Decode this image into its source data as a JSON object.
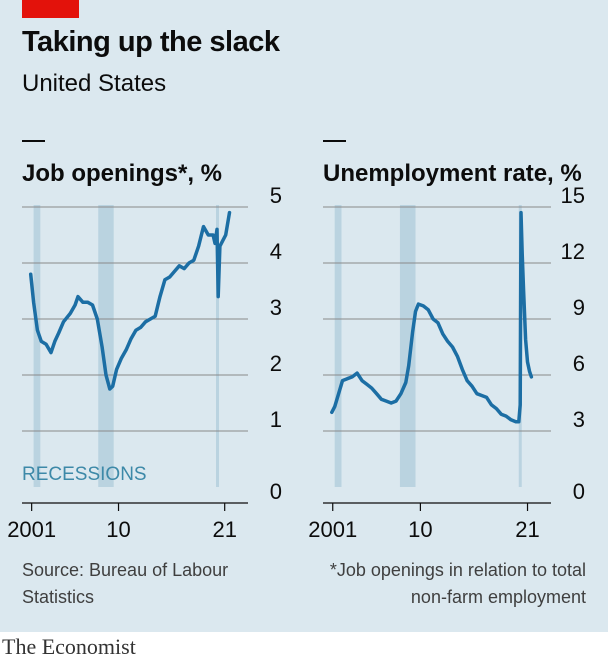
{
  "header": {
    "title": "Taking up the slack",
    "subtitle": "United States",
    "accent_color": "#e3120b"
  },
  "source": "Source: Bureau of Labour Statistics",
  "footnote": "*Job openings in relation to total non-farm employment",
  "brand": "The Economist",
  "recessions_label": "RECESSIONS",
  "colors": {
    "line": "#1c6ea4",
    "recession": "#bad3e0",
    "background": "#dbe8ef",
    "grid": "#8a8a8a"
  },
  "chart_data": [
    {
      "type": "line",
      "title": "Job openings*, %",
      "x_tick_labels": [
        "2001",
        "10",
        "21"
      ],
      "x_ticks": [
        2001,
        2010,
        2021
      ],
      "xlim": [
        2000,
        2023
      ],
      "ylim": [
        0,
        5
      ],
      "y_ticks": [
        0,
        1,
        2,
        3,
        4,
        5
      ],
      "grid": true,
      "recessions": [
        [
          2001.2,
          2001.9
        ],
        [
          2007.9,
          2009.5
        ],
        [
          2020.1,
          2020.4
        ]
      ],
      "series": [
        {
          "x": [
            2000.9,
            2001.2,
            2001.6,
            2002,
            2002.5,
            2003.0,
            2003.4,
            2003.8,
            2004.3,
            2005,
            2005.5,
            2005.8,
            2006.3,
            2006.8,
            2007.3,
            2007.8,
            2008.3,
            2008.7,
            2009.1,
            2009.4,
            2009.8,
            2010.3,
            2010.8,
            2011.3,
            2011.8,
            2012.3,
            2012.8,
            2013.3,
            2013.8,
            2014.3,
            2014.8,
            2015.3,
            2015.8,
            2016.3,
            2016.8,
            2017.3,
            2017.8,
            2018.3,
            2018.8,
            2019.3,
            2019.8,
            2020.0,
            2020.2,
            2020.33,
            2020.5,
            2020.8,
            2021.1,
            2021.5
          ],
          "y": [
            3.8,
            3.3,
            2.8,
            2.6,
            2.55,
            2.4,
            2.6,
            2.75,
            2.95,
            3.1,
            3.25,
            3.4,
            3.3,
            3.3,
            3.25,
            3.0,
            2.5,
            2.0,
            1.75,
            1.8,
            2.1,
            2.3,
            2.45,
            2.65,
            2.8,
            2.85,
            2.95,
            3.0,
            3.05,
            3.4,
            3.7,
            3.75,
            3.85,
            3.95,
            3.9,
            4.0,
            4.05,
            4.3,
            4.65,
            4.5,
            4.5,
            4.35,
            4.6,
            3.4,
            4.3,
            4.4,
            4.5,
            4.9
          ]
        }
      ]
    },
    {
      "type": "line",
      "title": "Unemployment rate, %",
      "x_tick_labels": [
        "2001",
        "10",
        "21"
      ],
      "x_ticks": [
        2001,
        2010,
        2021
      ],
      "xlim": [
        2000,
        2023
      ],
      "ylim": [
        0,
        15
      ],
      "y_ticks": [
        0,
        3,
        6,
        9,
        12,
        15
      ],
      "grid": true,
      "recessions": [
        [
          2001.2,
          2001.9
        ],
        [
          2007.9,
          2009.5
        ],
        [
          2020.1,
          2020.4
        ]
      ],
      "series": [
        {
          "x": [
            2000.9,
            2001.2,
            2001.6,
            2002,
            2002.5,
            2003,
            2003.5,
            2004,
            2004.5,
            2005,
            2005.5,
            2006,
            2006.5,
            2007,
            2007.5,
            2008,
            2008.5,
            2008.8,
            2009.2,
            2009.5,
            2009.8,
            2010.3,
            2010.8,
            2011.3,
            2011.8,
            2012.3,
            2012.8,
            2013.3,
            2013.8,
            2014.3,
            2014.8,
            2015.3,
            2015.8,
            2016.3,
            2016.8,
            2017.3,
            2017.8,
            2018.3,
            2018.8,
            2019.3,
            2019.8,
            2020.1,
            2020.25,
            2020.33,
            2020.45,
            2020.6,
            2020.8,
            2021.0,
            2021.2,
            2021.4
          ],
          "y": [
            4.0,
            4.3,
            5.0,
            5.7,
            5.8,
            5.9,
            6.1,
            5.7,
            5.5,
            5.3,
            5.0,
            4.7,
            4.6,
            4.5,
            4.6,
            5.0,
            5.6,
            6.5,
            8.3,
            9.4,
            9.8,
            9.7,
            9.5,
            9.0,
            8.8,
            8.2,
            7.8,
            7.5,
            7.0,
            6.3,
            5.7,
            5.4,
            5.0,
            4.9,
            4.8,
            4.4,
            4.2,
            3.9,
            3.8,
            3.6,
            3.5,
            3.5,
            4.4,
            14.7,
            12.5,
            10.5,
            7.9,
            6.7,
            6.2,
            5.9
          ]
        }
      ]
    }
  ]
}
